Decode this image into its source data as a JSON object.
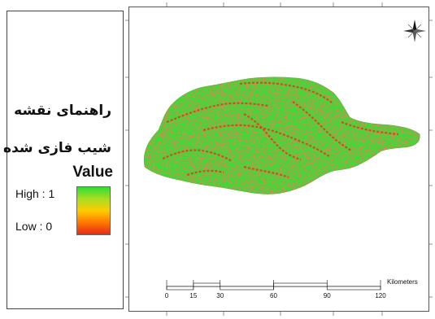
{
  "legend": {
    "title_line1": "راهنمای نقشه",
    "title_line2": "شیب فازی شده",
    "value_heading": "Value",
    "high_label": "High : 1",
    "low_label": "Low : 0",
    "ramp_colors": [
      "#33dd33",
      "#aadd22",
      "#ffcc00",
      "#ff7700",
      "#e62a1a"
    ]
  },
  "map": {
    "north_arrow_icon": "compass-rose-icon",
    "fill_color": "#33dd33",
    "hotspot_color": "#e03a1a",
    "scale_bar": {
      "ticks": [
        "0",
        "15",
        "30",
        "60",
        "90",
        "120"
      ],
      "tick_values": [
        0,
        15,
        30,
        60,
        90,
        120
      ],
      "units": "Kilometers"
    }
  }
}
